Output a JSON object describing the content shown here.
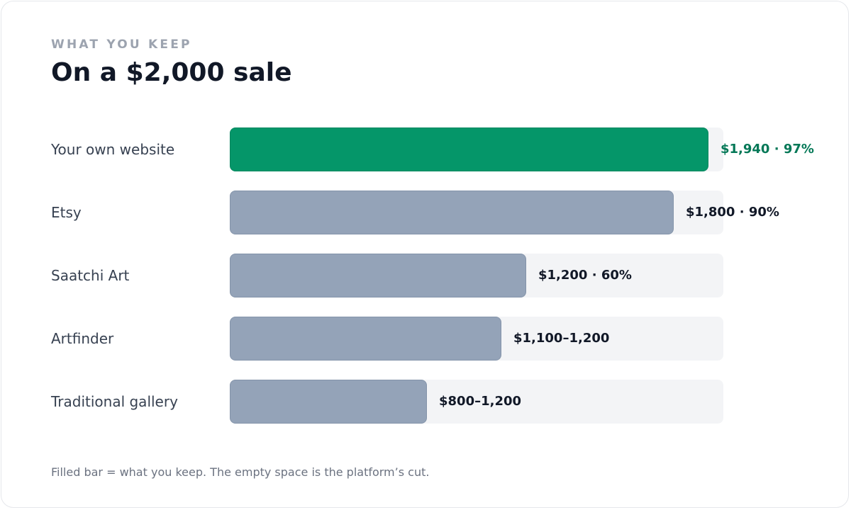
{
  "header": {
    "eyebrow": "WHAT YOU KEEP",
    "title": "On a $2,000 sale"
  },
  "chart_data": {
    "type": "bar",
    "orientation": "horizontal",
    "sale_amount": 2000,
    "xlim": [
      0,
      2000
    ],
    "categories": [
      "Your own website",
      "Etsy",
      "Saatchi Art",
      "Artfinder",
      "Traditional gallery"
    ],
    "values": [
      1940,
      1800,
      1200,
      1100,
      800
    ],
    "ranges": [
      null,
      null,
      null,
      [
        1100,
        1200
      ],
      [
        800,
        1200
      ]
    ],
    "value_labels": [
      "$1,940 · 97%",
      "$1,800 · 90%",
      "$1,200 · 60%",
      "$1,100–1,200",
      "$800–1,200"
    ],
    "highlight_index": 0,
    "grid": false,
    "legend": "none"
  },
  "colors": {
    "highlight": "#059669",
    "highlight_text": "#047857",
    "bar": "#94a3b8",
    "track": "#f3f4f6"
  },
  "footnote": "Filled bar = what you keep. The empty space is the platform’s cut."
}
